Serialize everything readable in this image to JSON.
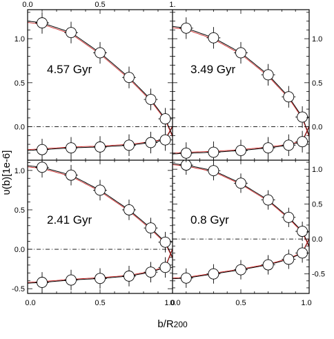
{
  "chart_data": {
    "type": "scatter",
    "xlabel_main": "b/R",
    "xlabel_sub": "200",
    "ylabel": "υ(b)[1e-6]",
    "xlim": [
      0,
      1
    ],
    "x_ticks_top": [
      "0.0",
      "0.5",
      "1."
    ],
    "x_ticks_bottom": [
      "0.0",
      "0.5",
      "1.0"
    ],
    "y_ticks_left_top": [
      "0.0",
      "0.5",
      "1.0"
    ],
    "y_ticks_right_top": [
      "0.0",
      "0.5",
      "1.0"
    ],
    "y_ticks_left_bottom": [
      "-0.5",
      "0.0",
      "0.5",
      "1.0"
    ],
    "y_ticks_right_bottom": [
      "-0.5",
      "0.0",
      "0.5",
      "1.0"
    ],
    "line_colors": {
      "model": "#cc2222",
      "fit": "#000000",
      "zero": "#000000"
    },
    "panels": [
      {
        "label": "4.57 Gyr",
        "ylim": [
          -0.38,
          1.33
        ],
        "upper": {
          "x": [
            0.1,
            0.3,
            0.5,
            0.7,
            0.85,
            0.95
          ],
          "y": [
            1.18,
            1.07,
            0.84,
            0.56,
            0.31,
            0.09
          ],
          "err": [
            0.06,
            0.06,
            0.06,
            0.06,
            0.06,
            0.06
          ]
        },
        "lower": {
          "x": [
            0.1,
            0.3,
            0.5,
            0.7,
            0.85,
            0.95
          ],
          "y": [
            -0.26,
            -0.24,
            -0.23,
            -0.21,
            -0.18,
            -0.15
          ],
          "err": [
            0.06,
            0.06,
            0.06,
            0.06,
            0.06,
            0.06
          ]
        }
      },
      {
        "label": "3.49 Gyr",
        "ylim": [
          -0.38,
          1.33
        ],
        "upper": {
          "x": [
            0.1,
            0.3,
            0.5,
            0.7,
            0.85,
            0.95
          ],
          "y": [
            1.12,
            1.01,
            0.84,
            0.59,
            0.34,
            0.11
          ],
          "err": [
            0.06,
            0.06,
            0.06,
            0.06,
            0.06,
            0.06
          ]
        },
        "lower": {
          "x": [
            0.1,
            0.3,
            0.5,
            0.7,
            0.85,
            0.95
          ],
          "y": [
            -0.3,
            -0.29,
            -0.27,
            -0.24,
            -0.21,
            -0.17
          ],
          "err": [
            0.06,
            0.06,
            0.06,
            0.06,
            0.06,
            0.06
          ]
        }
      },
      {
        "label": "2.41 Gyr",
        "ylim": [
          -0.56,
          1.13
        ],
        "upper": {
          "x": [
            0.1,
            0.3,
            0.5,
            0.7,
            0.85,
            0.95
          ],
          "y": [
            1.04,
            0.94,
            0.75,
            0.5,
            0.27,
            0.09
          ],
          "err": [
            0.06,
            0.06,
            0.06,
            0.06,
            0.06,
            0.06
          ]
        },
        "lower": {
          "x": [
            0.1,
            0.3,
            0.5,
            0.7,
            0.85,
            0.95
          ],
          "y": [
            -0.42,
            -0.39,
            -0.37,
            -0.34,
            -0.29,
            -0.23
          ],
          "err": [
            0.06,
            0.06,
            0.06,
            0.06,
            0.06,
            0.06
          ]
        }
      },
      {
        "label": "0.8 Gyr",
        "ylim": [
          -0.78,
          1.13
        ],
        "upper": {
          "x": [
            0.1,
            0.3,
            0.5,
            0.7,
            0.85,
            0.95
          ],
          "y": [
            1.06,
            0.98,
            0.8,
            0.56,
            0.31,
            0.11
          ],
          "err": [
            0.06,
            0.06,
            0.06,
            0.06,
            0.06,
            0.06
          ]
        },
        "lower": {
          "x": [
            0.1,
            0.3,
            0.5,
            0.7,
            0.85,
            0.95
          ],
          "y": [
            -0.56,
            -0.5,
            -0.44,
            -0.37,
            -0.29,
            -0.2
          ],
          "err": [
            0.06,
            0.06,
            0.06,
            0.06,
            0.06,
            0.06
          ]
        }
      }
    ]
  }
}
